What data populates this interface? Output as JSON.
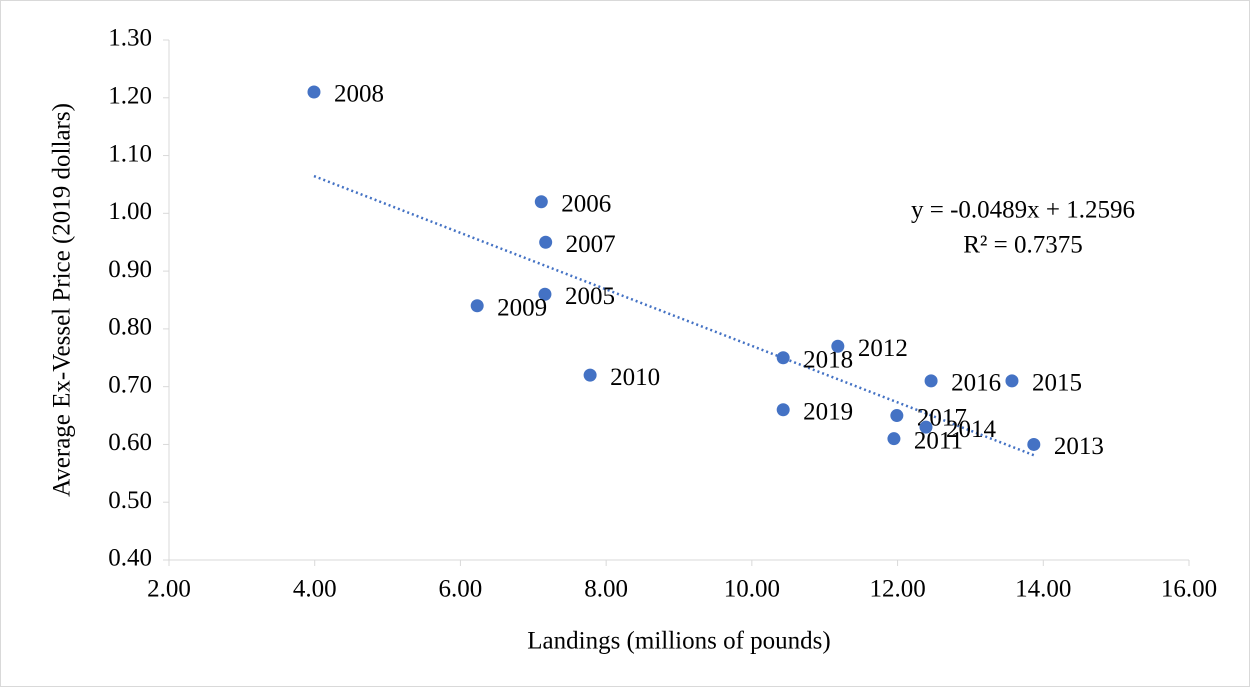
{
  "chart_data": {
    "type": "scatter",
    "x_label": "Landings (millions of pounds)",
    "y_label": "Average Ex-Vessel Price (2019 dollars)",
    "xlim": [
      2,
      16
    ],
    "xticks": [
      {
        "value": 2,
        "label": "2.00"
      },
      {
        "value": 4,
        "label": "4.00"
      },
      {
        "value": 6,
        "label": "6.00"
      },
      {
        "value": 8,
        "label": "8.00"
      },
      {
        "value": 10,
        "label": "10.00"
      },
      {
        "value": 12,
        "label": "12.00"
      },
      {
        "value": 14,
        "label": "14.00"
      },
      {
        "value": 16,
        "label": "16.00"
      }
    ],
    "ylim": [
      0.4,
      1.3
    ],
    "yticks": [
      {
        "value": 0.4,
        "label": "0.40"
      },
      {
        "value": 0.5,
        "label": "0.50"
      },
      {
        "value": 0.6,
        "label": "0.60"
      },
      {
        "value": 0.7,
        "label": "0.70"
      },
      {
        "value": 0.8,
        "label": "0.80"
      },
      {
        "value": 0.9,
        "label": "0.90"
      },
      {
        "value": 1.0,
        "label": "1.00"
      },
      {
        "value": 1.1,
        "label": "1.10"
      },
      {
        "value": 1.2,
        "label": "1.20"
      },
      {
        "value": 1.3,
        "label": "1.30"
      }
    ],
    "grid": false,
    "series": [
      {
        "color": "#4472c4",
        "point_labels": [
          "2008",
          "2006",
          "2007",
          "2005",
          "2009",
          "2010",
          "2018",
          "2012",
          "2019",
          "2016",
          "2015",
          "2017",
          "2014",
          "2011",
          "2013"
        ],
        "x": [
          3.99,
          7.11,
          7.17,
          7.16,
          6.23,
          7.78,
          10.43,
          11.18,
          10.43,
          12.46,
          13.57,
          11.99,
          12.39,
          11.95,
          13.87
        ],
        "values": [
          1.21,
          1.02,
          0.95,
          0.86,
          0.84,
          0.72,
          0.75,
          0.77,
          0.66,
          0.71,
          0.71,
          0.65,
          0.63,
          0.61,
          0.6
        ]
      }
    ],
    "trendline": {
      "slope": -0.0489,
      "intercept": 1.2596,
      "equation": "y = -0.0489x + 1.2596",
      "r2_label": "R² = 0.7375"
    }
  }
}
